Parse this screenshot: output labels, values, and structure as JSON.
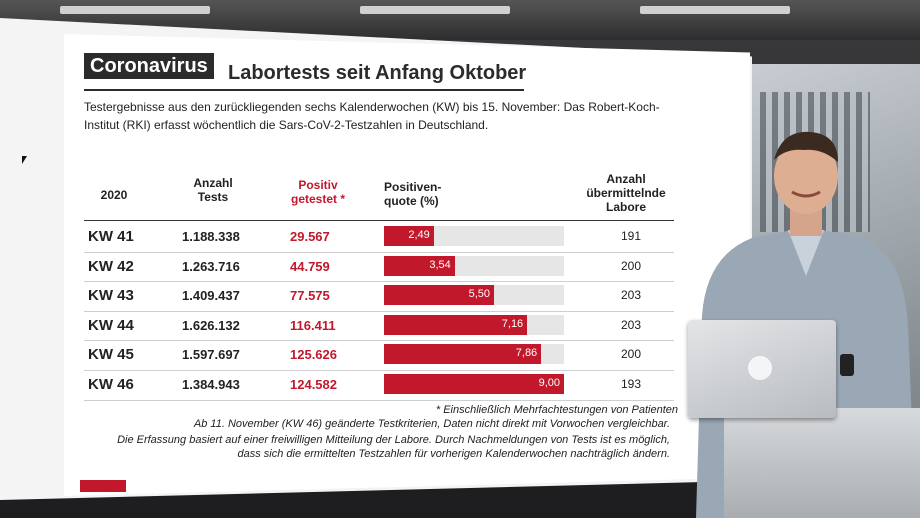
{
  "title": {
    "tag": "Coronavirus",
    "heading": "Labortests seit Anfang Oktober"
  },
  "intro": "Testergebnisse aus den zurückliegenden sechs Kalenderwochen (KW) bis 15. November: Das Robert-Koch-Institut (RKI) erfasst wöchentlich die Sars-CoV-2-Testzahlen in Deutschland.",
  "table": {
    "headers": {
      "year": "2020",
      "tests": "Anzahl Tests",
      "positive": "Positiv getestet *",
      "rate": "Positiven-quote (%)",
      "labs": "Anzahl übermittelnde Labore"
    },
    "rate_max": 9.0,
    "rows": [
      {
        "week": "KW 41",
        "tests": "1.188.338",
        "positive": "29.567",
        "rate": 2.49,
        "rate_label": "2,49",
        "labs": "191"
      },
      {
        "week": "KW 42",
        "tests": "1.263.716",
        "positive": "44.759",
        "rate": 3.54,
        "rate_label": "3,54",
        "labs": "200"
      },
      {
        "week": "KW 43",
        "tests": "1.409.437",
        "positive": "77.575",
        "rate": 5.5,
        "rate_label": "5,50",
        "labs": "203"
      },
      {
        "week": "KW 44",
        "tests": "1.626.132",
        "positive": "116.411",
        "rate": 7.16,
        "rate_label": "7,16",
        "labs": "203"
      },
      {
        "week": "KW 45",
        "tests": "1.597.697",
        "positive": "125.626",
        "rate": 7.86,
        "rate_label": "7,86",
        "labs": "200"
      },
      {
        "week": "KW 46",
        "tests": "1.384.943",
        "positive": "124.582",
        "rate": 9.0,
        "rate_label": "9,00",
        "labs": "193"
      }
    ]
  },
  "footnotes": {
    "asterisk": "* Einschließlich Mehrfachtestungen von Patienten",
    "change": "Ab 11. November (KW 46) geänderte Testkriterien, Daten nicht direkt mit Vorwochen vergleichbar.",
    "basis": "Die Erfassung basiert auf einer freiwilligen Mitteilung der Labore. Durch Nachmeldungen von Tests ist es möglich, dass sich die ermittelten Testzahlen für vorherigen Kalenderwochen nachträglich ändern."
  },
  "colors": {
    "accent": "#c2182b",
    "bar_track": "#e6e6e6"
  }
}
